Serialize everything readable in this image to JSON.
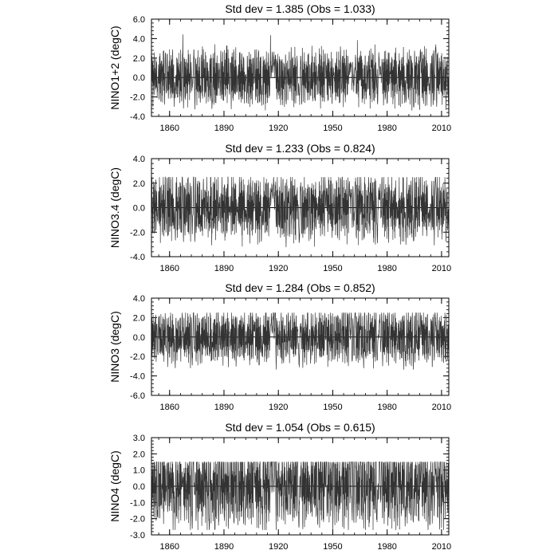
{
  "chart_data": [
    {
      "type": "line",
      "title": "Std dev = 1.385 (Obs = 1.033)",
      "xlabel": "",
      "ylabel": "NINO1+2 (degC)",
      "xlim": [
        1850,
        2014
      ],
      "ylim": [
        -4.0,
        6.0
      ],
      "yticks": [
        -4,
        -2,
        0,
        2,
        4,
        6
      ],
      "ytick_labels": [
        "-4.0",
        "-2.0",
        "0.0",
        "2.0",
        "4.0",
        "6.0"
      ],
      "xticks": [
        1860,
        1890,
        1920,
        1950,
        1980,
        2010
      ],
      "xtick_labels": [
        "1860",
        "1890",
        "1920",
        "1950",
        "1980",
        "2010"
      ],
      "zero_line": true,
      "series": [
        {
          "color": "#333333"
        }
      ]
    },
    {
      "type": "line",
      "title": "Std dev = 1.233 (Obs = 0.824)",
      "xlabel": "",
      "ylabel": "NINO3.4 (degC)",
      "xlim": [
        1850,
        2014
      ],
      "ylim": [
        -4.0,
        4.0
      ],
      "yticks": [
        -4,
        -2,
        0,
        2,
        4
      ],
      "ytick_labels": [
        "-4.0",
        "-2.0",
        "0.0",
        "2.0",
        "4.0"
      ],
      "xticks": [
        1860,
        1890,
        1920,
        1950,
        1980,
        2010
      ],
      "xtick_labels": [
        "1860",
        "1890",
        "1920",
        "1950",
        "1980",
        "2010"
      ],
      "zero_line": true,
      "series": [
        {
          "color": "#333333"
        }
      ]
    },
    {
      "type": "line",
      "title": "Std dev = 1.284 (Obs = 0.852)",
      "xlabel": "",
      "ylabel": "NINO3 (degC)",
      "xlim": [
        1850,
        2014
      ],
      "ylim": [
        -6.0,
        4.0
      ],
      "yticks": [
        -6,
        -4,
        -2,
        0,
        2,
        4
      ],
      "ytick_labels": [
        "-6.0",
        "-4.0",
        "-2.0",
        "0.0",
        "2.0",
        "4.0"
      ],
      "xticks": [
        1860,
        1890,
        1920,
        1950,
        1980,
        2010
      ],
      "xtick_labels": [
        "1860",
        "1890",
        "1920",
        "1950",
        "1980",
        "2010"
      ],
      "zero_line": true,
      "series": [
        {
          "color": "#333333"
        }
      ]
    },
    {
      "type": "line",
      "title": "Std dev = 1.054 (Obs = 0.615)",
      "xlabel": "",
      "ylabel": "NINO4 (degC)",
      "xlim": [
        1850,
        2014
      ],
      "ylim": [
        -3.0,
        3.0
      ],
      "yticks": [
        -3,
        -2,
        -1,
        0,
        1,
        2,
        3
      ],
      "ytick_labels": [
        "-3.0",
        "-2.0",
        "-1.0",
        "0.0",
        "1.0",
        "2.0",
        "3.0"
      ],
      "xticks": [
        1860,
        1890,
        1920,
        1950,
        1980,
        2010
      ],
      "xtick_labels": [
        "1860",
        "1890",
        "1920",
        "1950",
        "1980",
        "2010"
      ],
      "zero_line": true,
      "series": [
        {
          "color": "#333333"
        }
      ]
    }
  ]
}
